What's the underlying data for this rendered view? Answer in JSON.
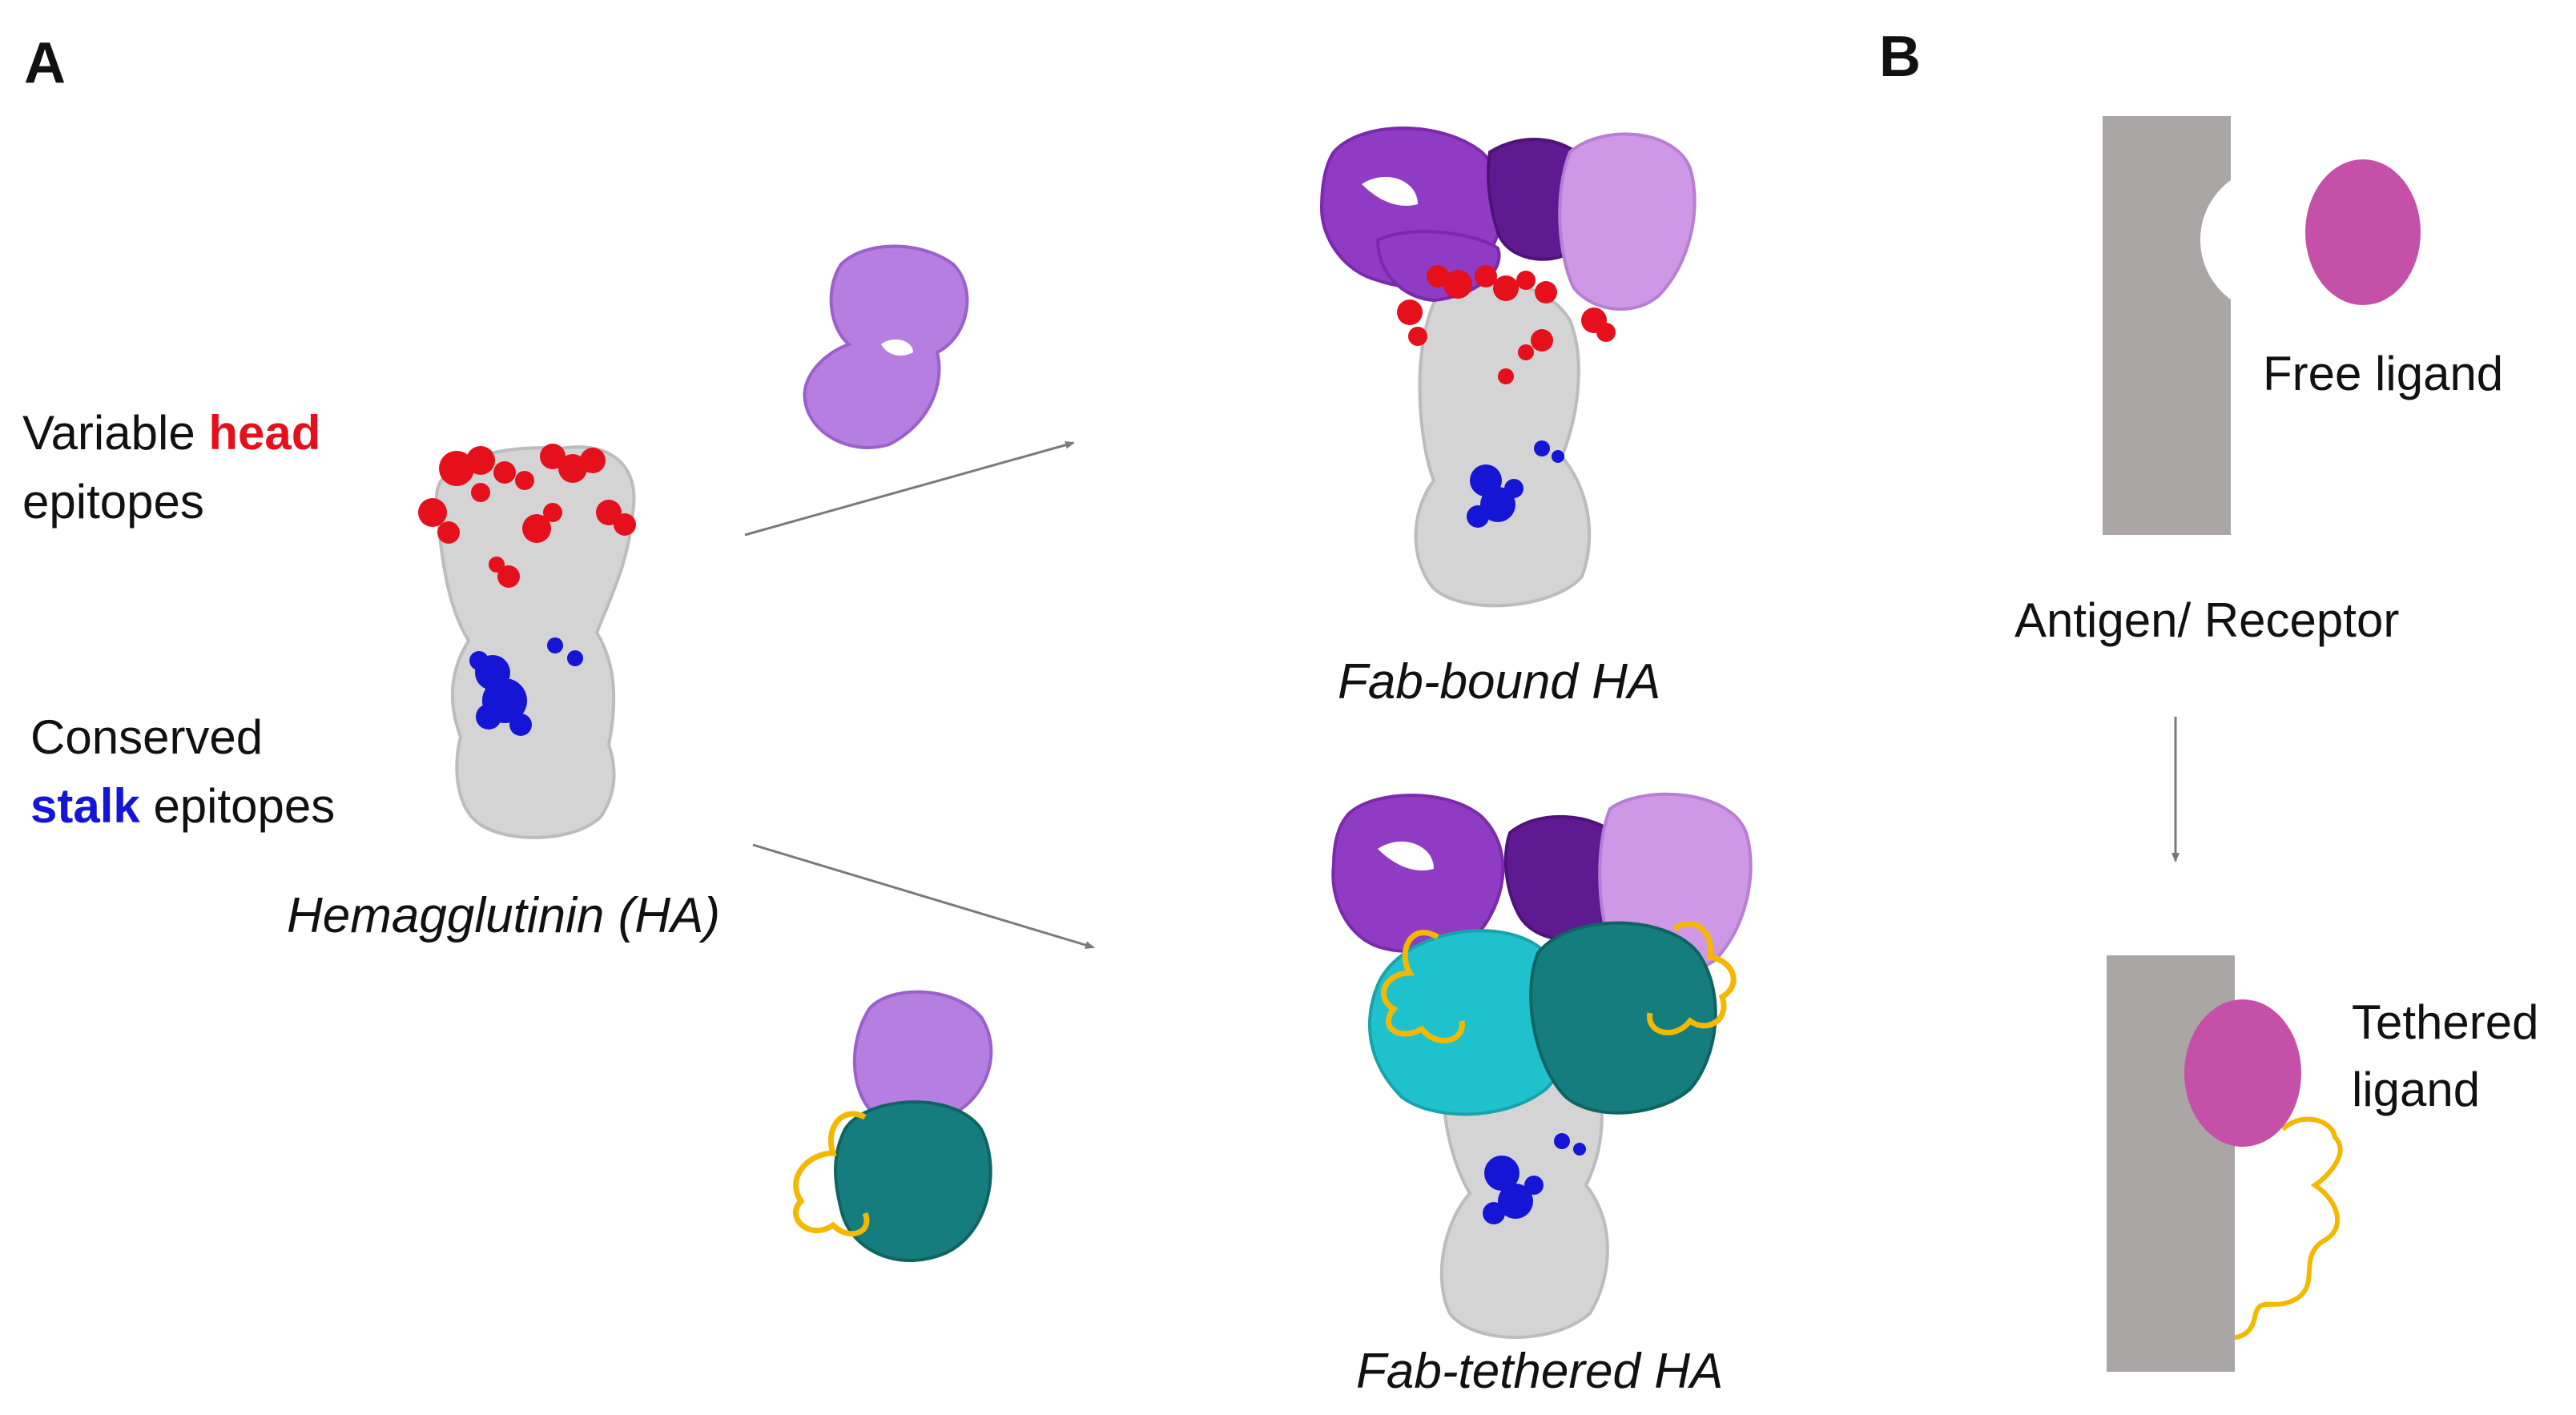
{
  "panels": {
    "a": {
      "letter": "A"
    },
    "b": {
      "letter": "B"
    }
  },
  "labels": {
    "variable": "Variable",
    "head": "head",
    "epitopes_1": "epitopes",
    "conserved": "Conserved",
    "stalk": "stalk",
    "epitopes_2": "epitopes",
    "hemagglutinin": "Hemagglutinin (HA)",
    "fab_bound": "Fab-bound HA",
    "fab_tethered": "Fab-tethered HA",
    "free_ligand": "Free ligand",
    "antigen_receptor": "Antigen/ Receptor",
    "tethered_1": "Tethered",
    "tethered_2": "ligand"
  },
  "colors": {
    "head_epitope": "#e5101c",
    "stalk_epitope": "#1515d6",
    "ha_body": "#d4d4d4",
    "fab_light": "#b57ee0",
    "fab_mid": "#8f3bc4",
    "fab_dark": "#5f1a92",
    "fab_pale": "#cf98e6",
    "cyan": "#1fc2cc",
    "teal": "#157d7d",
    "linker": "#f5b800",
    "receptor": "#a9a6a5",
    "ligand": "#c451a7",
    "arrow": "#7a7a7a"
  },
  "icons": [
    "ha-molecule",
    "fab-fragment",
    "tethered-fab",
    "receptor-block",
    "ligand-ellipse",
    "arrow"
  ]
}
